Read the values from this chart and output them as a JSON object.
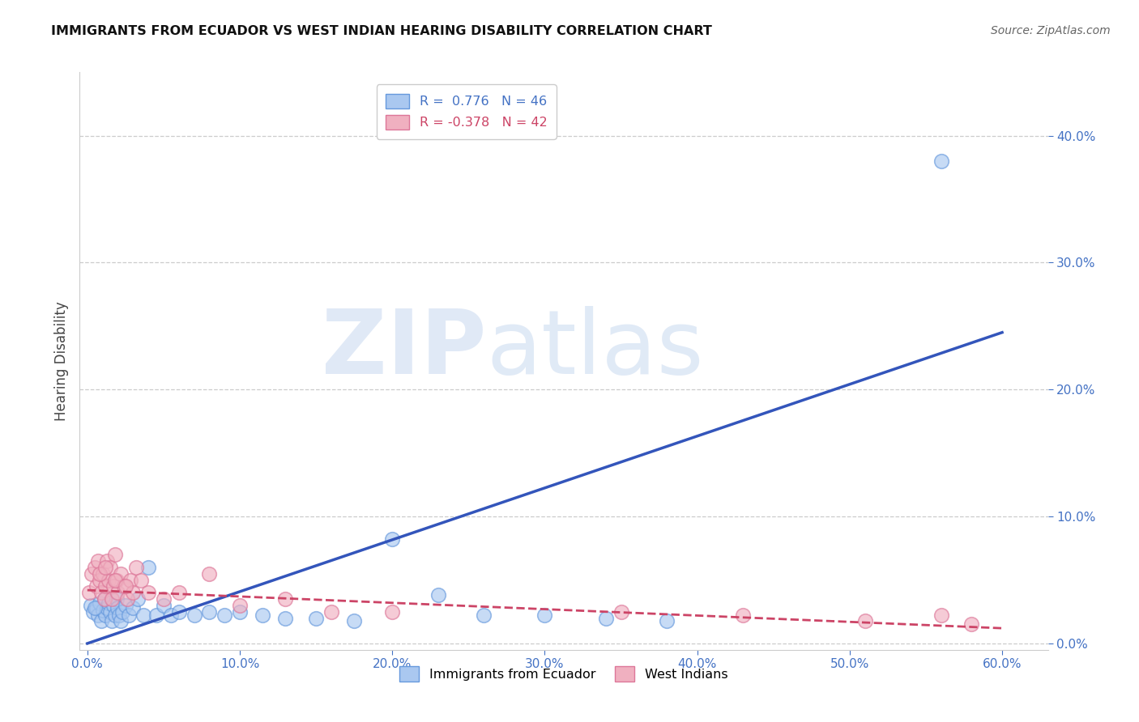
{
  "title": "IMMIGRANTS FROM ECUADOR VS WEST INDIAN HEARING DISABILITY CORRELATION CHART",
  "source": "Source: ZipAtlas.com",
  "xlabel_ticks": [
    "0.0%",
    "10.0%",
    "20.0%",
    "30.0%",
    "40.0%",
    "50.0%",
    "60.0%"
  ],
  "xlabel_vals": [
    0.0,
    0.1,
    0.2,
    0.3,
    0.4,
    0.5,
    0.6
  ],
  "ylabel": "Hearing Disability",
  "ytick_vals": [
    0.0,
    0.1,
    0.2,
    0.3,
    0.4
  ],
  "ytick_labels": [
    "0.0%",
    "10.0%",
    "20.0%",
    "30.0%",
    "40.0%"
  ],
  "xlim": [
    -0.005,
    0.63
  ],
  "ylim": [
    -0.005,
    0.45
  ],
  "color_ecuador": "#aac8f0",
  "color_ecuador_edge": "#6699dd",
  "color_westindian": "#f0b0c0",
  "color_westindian_edge": "#dd7799",
  "color_ecuador_line": "#3355bb",
  "color_westindian_line": "#cc4466",
  "legend_r_ecuador": "R =  0.776",
  "legend_n_ecuador": "N = 46",
  "legend_r_west": "R = -0.378",
  "legend_n_west": "N = 42",
  "ecuador_scatter_x": [
    0.002,
    0.004,
    0.006,
    0.007,
    0.008,
    0.009,
    0.01,
    0.011,
    0.012,
    0.013,
    0.014,
    0.015,
    0.016,
    0.017,
    0.018,
    0.019,
    0.02,
    0.021,
    0.022,
    0.023,
    0.025,
    0.027,
    0.03,
    0.033,
    0.037,
    0.04,
    0.045,
    0.05,
    0.055,
    0.06,
    0.07,
    0.08,
    0.09,
    0.1,
    0.115,
    0.13,
    0.15,
    0.175,
    0.2,
    0.23,
    0.26,
    0.3,
    0.34,
    0.38,
    0.56,
    0.005
  ],
  "ecuador_scatter_y": [
    0.03,
    0.025,
    0.028,
    0.022,
    0.032,
    0.018,
    0.026,
    0.035,
    0.022,
    0.028,
    0.032,
    0.025,
    0.018,
    0.03,
    0.022,
    0.035,
    0.028,
    0.022,
    0.018,
    0.025,
    0.03,
    0.022,
    0.028,
    0.035,
    0.022,
    0.06,
    0.022,
    0.03,
    0.022,
    0.025,
    0.022,
    0.025,
    0.022,
    0.025,
    0.022,
    0.02,
    0.02,
    0.018,
    0.082,
    0.038,
    0.022,
    0.022,
    0.02,
    0.018,
    0.38,
    0.028
  ],
  "westindian_scatter_x": [
    0.001,
    0.003,
    0.005,
    0.006,
    0.007,
    0.008,
    0.009,
    0.01,
    0.011,
    0.012,
    0.013,
    0.014,
    0.015,
    0.016,
    0.017,
    0.018,
    0.019,
    0.02,
    0.022,
    0.024,
    0.026,
    0.028,
    0.03,
    0.032,
    0.035,
    0.04,
    0.05,
    0.06,
    0.08,
    0.1,
    0.13,
    0.16,
    0.2,
    0.35,
    0.43,
    0.51,
    0.56,
    0.58,
    0.008,
    0.012,
    0.018,
    0.025
  ],
  "westindian_scatter_y": [
    0.04,
    0.055,
    0.06,
    0.045,
    0.065,
    0.05,
    0.04,
    0.055,
    0.035,
    0.045,
    0.065,
    0.05,
    0.06,
    0.035,
    0.045,
    0.07,
    0.05,
    0.04,
    0.055,
    0.045,
    0.035,
    0.05,
    0.04,
    0.06,
    0.05,
    0.04,
    0.035,
    0.04,
    0.055,
    0.03,
    0.035,
    0.025,
    0.025,
    0.025,
    0.022,
    0.018,
    0.022,
    0.015,
    0.055,
    0.06,
    0.05,
    0.045
  ],
  "ecuador_line_x": [
    0.0,
    0.6
  ],
  "ecuador_line_y": [
    0.0,
    0.245
  ],
  "westindian_line_x": [
    0.0,
    0.6
  ],
  "westindian_line_y": [
    0.042,
    0.012
  ]
}
